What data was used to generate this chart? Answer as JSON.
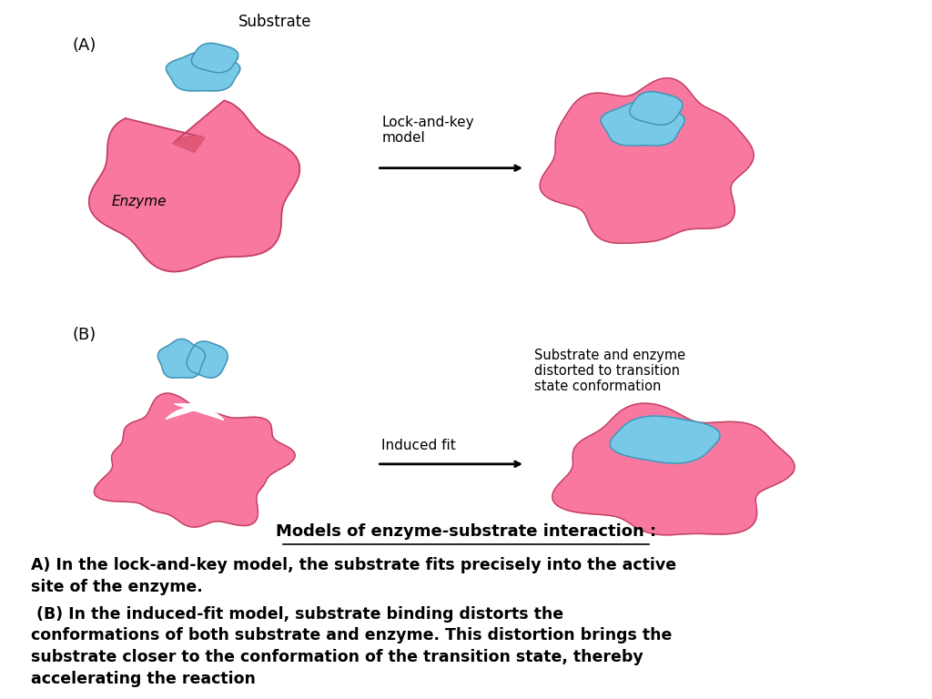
{
  "bg_color": "#ffffff",
  "enzyme_color": "#F878A0",
  "enzyme_edge_color": "#C04060",
  "substrate_color": "#78C8E8",
  "substrate_edge_color": "#4090B0",
  "text_color": "#000000",
  "label_A": "(A)",
  "label_B": "(B)",
  "label_substrate": "Substrate",
  "label_enzyme": "Enzyme",
  "label_lock_key": "Lock-and-key\nmodel",
  "label_induced_fit": "Induced fit",
  "label_distorted": "Substrate and enzyme\ndistorted to transition\nstate conformation",
  "title": "Models of enzyme-substrate interaction :",
  "line1": "A) In the lock-and-key model, the substrate fits precisely into the active\nsite of the enzyme.",
  "line2": " (B) In the induced-fit model, substrate binding distorts the\nconformations of both substrate and enzyme. This distortion brings the\nsubstrate closer to the conformation of the transition state, thereby\naccelerating the reaction"
}
